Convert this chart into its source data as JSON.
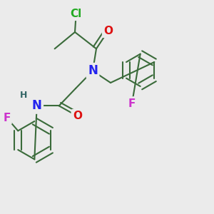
{
  "bg_color": "#ebebeb",
  "bond_color": "#3a6b3a",
  "bond_width": 1.5,
  "atom_colors": {
    "Cl": "#22aa22",
    "O": "#dd1111",
    "N": "#2222ee",
    "F": "#cc33cc",
    "H": "#336666",
    "C": "#3a6b3a"
  },
  "figsize": [
    3.0,
    3.0
  ],
  "dpi": 100
}
